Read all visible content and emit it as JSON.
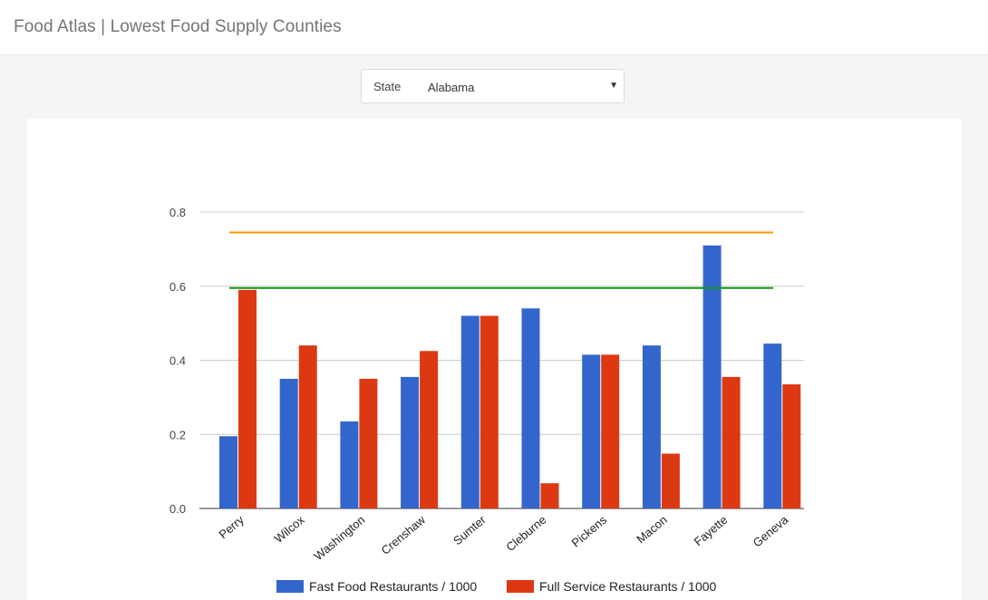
{
  "header": {
    "title": "Food Atlas | Lowest Food Supply Counties"
  },
  "state_select": {
    "label": "State",
    "value": "Alabama"
  },
  "colors": {
    "fast_food": "#3366cc",
    "full_service": "#dc3912",
    "orange_line": "#ff9900",
    "green_line": "#109618",
    "grid": "#cccccc"
  },
  "chart_data": {
    "type": "bar",
    "categories": [
      "Perry",
      "Wilcox",
      "Washington",
      "Crenshaw",
      "Sumter",
      "Cleburne",
      "Pickens",
      "Macon",
      "Fayette",
      "Geneva"
    ],
    "series": [
      {
        "name": "Fast Food Restaurants / 1000",
        "values": [
          0.195,
          0.35,
          0.235,
          0.355,
          0.52,
          0.54,
          0.415,
          0.44,
          0.71,
          0.445
        ]
      },
      {
        "name": "Full Service Restaurants / 1000",
        "values": [
          0.59,
          0.44,
          0.35,
          0.425,
          0.52,
          0.068,
          0.415,
          0.148,
          0.355,
          0.335
        ]
      }
    ],
    "reference_lines": [
      {
        "value": 0.745
      },
      {
        "value": 0.595
      }
    ],
    "yticks": [
      "0.0",
      "0.2",
      "0.4",
      "0.6",
      "0.8"
    ],
    "ylim": [
      0,
      0.8
    ],
    "grid": true,
    "legend": "bottom"
  }
}
